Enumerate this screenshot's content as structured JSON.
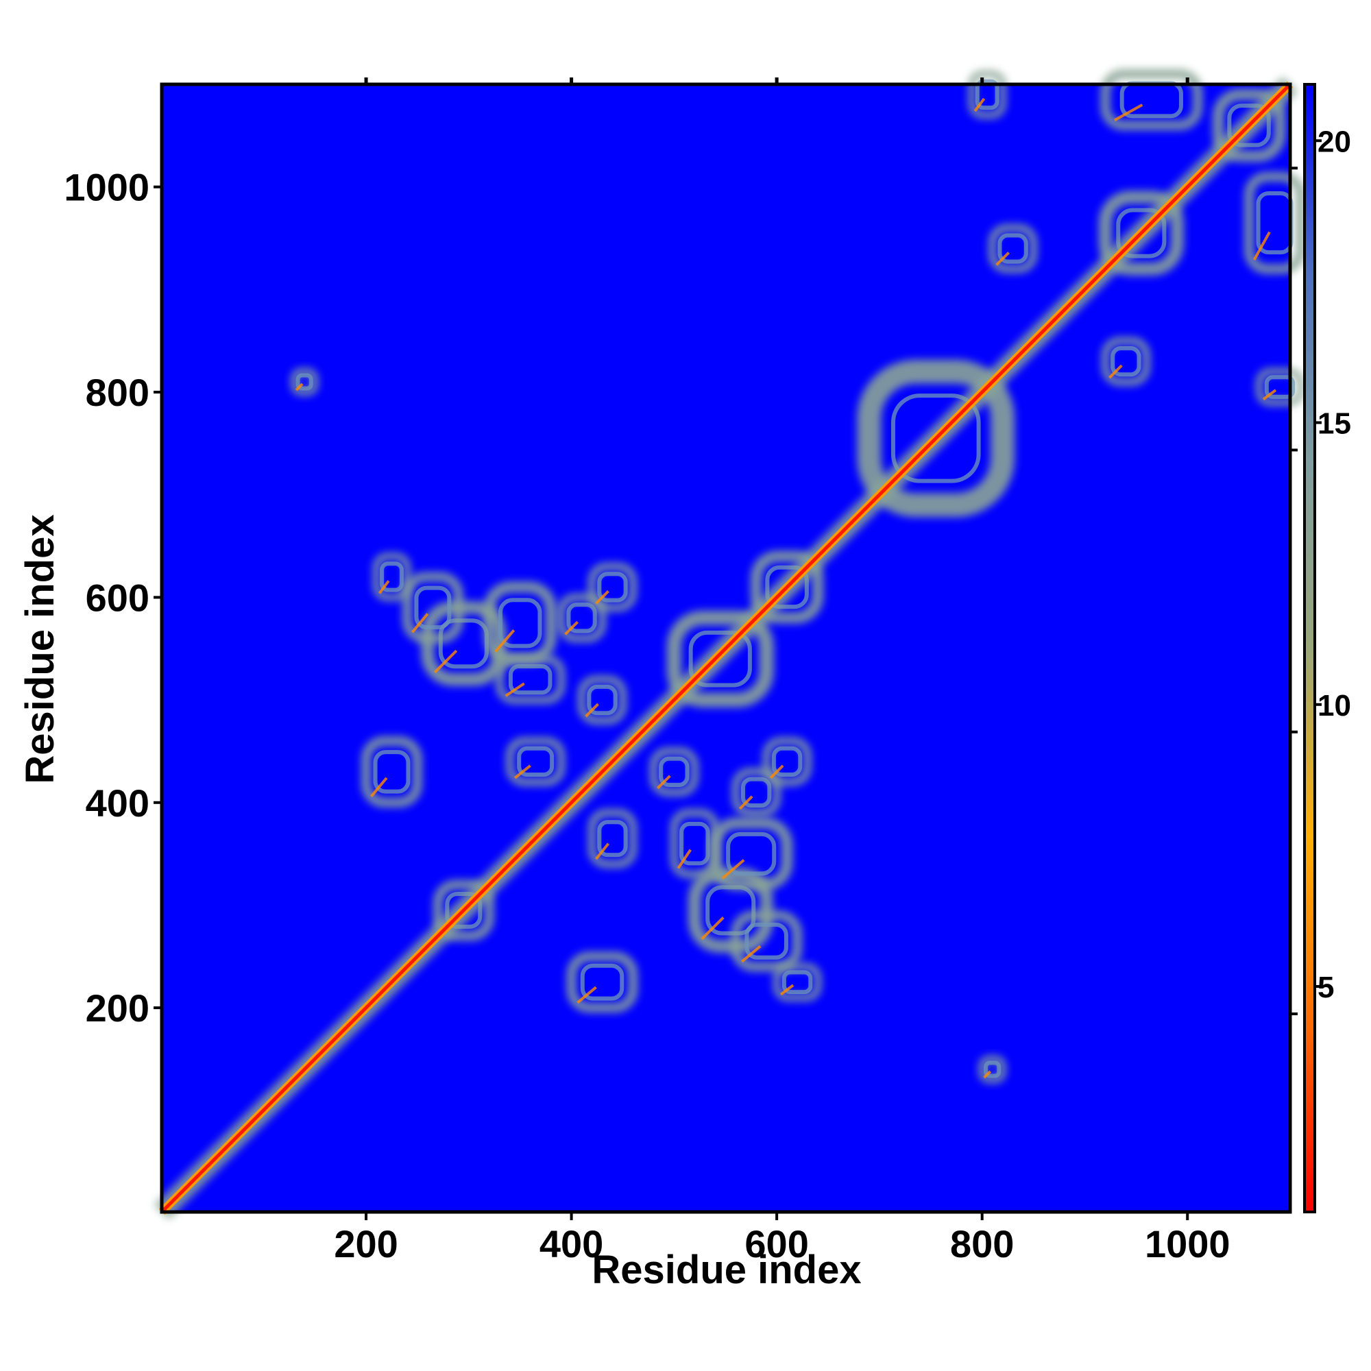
{
  "chart_data": {
    "type": "heatmap",
    "title": "",
    "xlabel": "Residue index",
    "ylabel": "Residue index",
    "xlim": [
      1,
      1100
    ],
    "ylim": [
      1,
      1100
    ],
    "x_ticks": [
      200,
      400,
      600,
      800,
      1000
    ],
    "x_ticks_top": [
      200,
      400,
      600,
      800,
      1000
    ],
    "y_ticks": [
      200,
      400,
      600,
      800,
      1000
    ],
    "colorbar": {
      "range": [
        1,
        21
      ],
      "ticks": [
        5,
        10,
        15,
        20
      ],
      "tick_marks": [
        5,
        10,
        15,
        20
      ],
      "colors": [
        "#ff0000",
        "#ff6a00",
        "#ffb000",
        "#9aa77a",
        "#7f9ea0",
        "#4e6fbf",
        "#0000ff"
      ]
    },
    "background_color": "#0000ff",
    "diagonal": {
      "from": 1,
      "to": 1100,
      "color": "#ff1a00"
    },
    "contact_regions": [
      {
        "x": 690,
        "y": 690,
        "w": 130,
        "h": 130
      },
      {
        "x": 920,
        "y": 920,
        "w": 70,
        "h": 70
      },
      {
        "x": 1030,
        "y": 1030,
        "w": 60,
        "h": 60
      },
      {
        "x": 270,
        "y": 270,
        "w": 50,
        "h": 50
      },
      {
        "x": 500,
        "y": 500,
        "w": 90,
        "h": 80
      },
      {
        "x": 580,
        "y": 580,
        "w": 60,
        "h": 60
      },
      {
        "x": 1060,
        "y": 920,
        "w": 50,
        "h": 90
      },
      {
        "x": 920,
        "y": 1060,
        "w": 90,
        "h": 50
      },
      {
        "x": 810,
        "y": 920,
        "w": 40,
        "h": 40
      },
      {
        "x": 920,
        "y": 810,
        "w": 40,
        "h": 40
      },
      {
        "x": 1070,
        "y": 790,
        "w": 40,
        "h": 30
      },
      {
        "x": 790,
        "y": 1070,
        "w": 30,
        "h": 40
      },
      {
        "x": 200,
        "y": 400,
        "w": 50,
        "h": 60
      },
      {
        "x": 400,
        "y": 200,
        "w": 60,
        "h": 50
      },
      {
        "x": 260,
        "y": 520,
        "w": 70,
        "h": 70
      },
      {
        "x": 520,
        "y": 260,
        "w": 70,
        "h": 70
      },
      {
        "x": 330,
        "y": 500,
        "w": 60,
        "h": 40
      },
      {
        "x": 500,
        "y": 330,
        "w": 40,
        "h": 60
      },
      {
        "x": 540,
        "y": 320,
        "w": 70,
        "h": 60
      },
      {
        "x": 320,
        "y": 540,
        "w": 60,
        "h": 70
      },
      {
        "x": 560,
        "y": 240,
        "w": 60,
        "h": 50
      },
      {
        "x": 240,
        "y": 560,
        "w": 50,
        "h": 60
      },
      {
        "x": 340,
        "y": 420,
        "w": 50,
        "h": 40
      },
      {
        "x": 420,
        "y": 340,
        "w": 40,
        "h": 50
      },
      {
        "x": 600,
        "y": 210,
        "w": 40,
        "h": 30
      },
      {
        "x": 210,
        "y": 600,
        "w": 30,
        "h": 40
      },
      {
        "x": 410,
        "y": 480,
        "w": 40,
        "h": 40
      },
      {
        "x": 480,
        "y": 410,
        "w": 40,
        "h": 40
      },
      {
        "x": 560,
        "y": 390,
        "w": 40,
        "h": 40
      },
      {
        "x": 390,
        "y": 560,
        "w": 40,
        "h": 40
      },
      {
        "x": 800,
        "y": 130,
        "w": 20,
        "h": 20
      },
      {
        "x": 130,
        "y": 800,
        "w": 20,
        "h": 20
      },
      {
        "x": 420,
        "y": 590,
        "w": 40,
        "h": 40
      },
      {
        "x": 590,
        "y": 420,
        "w": 40,
        "h": 40
      }
    ]
  }
}
